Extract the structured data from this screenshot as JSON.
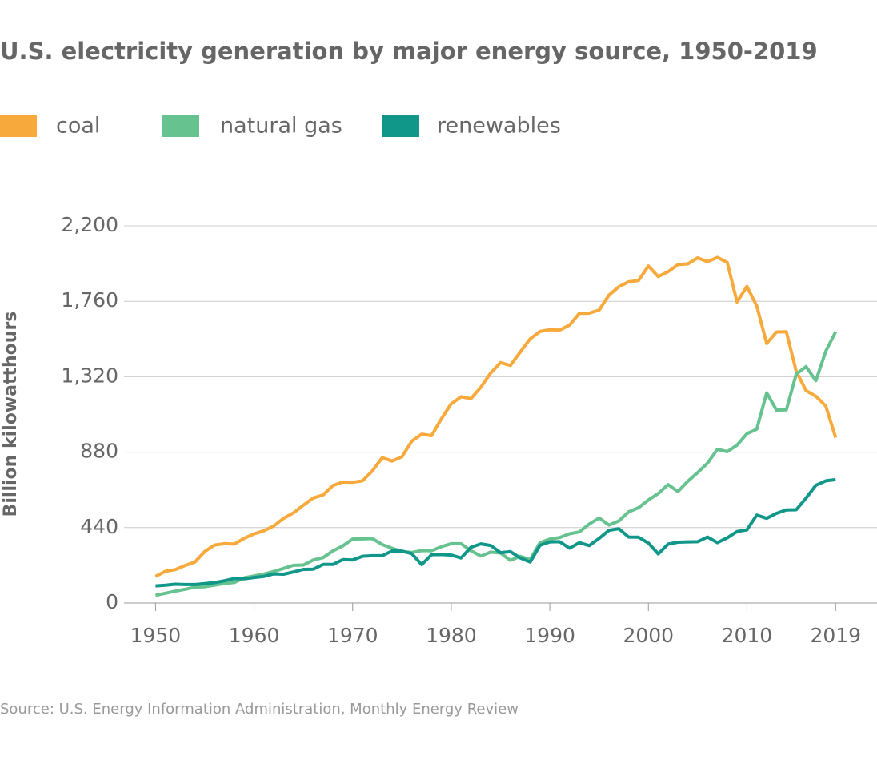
{
  "chart_data": {
    "type": "line",
    "title": "U.S. electricity generation by major energy source, 1950-2019",
    "ylabel": "Billion kilowatthours",
    "source": "Source: U.S. Energy Information Administration, Monthly Energy Review",
    "x": [
      1950,
      1951,
      1952,
      1953,
      1954,
      1955,
      1956,
      1957,
      1958,
      1959,
      1960,
      1961,
      1962,
      1963,
      1964,
      1965,
      1966,
      1967,
      1968,
      1969,
      1970,
      1971,
      1972,
      1973,
      1974,
      1975,
      1976,
      1977,
      1978,
      1979,
      1980,
      1981,
      1982,
      1983,
      1984,
      1985,
      1986,
      1987,
      1988,
      1989,
      1990,
      1991,
      1992,
      1993,
      1994,
      1995,
      1996,
      1997,
      1998,
      1999,
      2000,
      2001,
      2002,
      2003,
      2004,
      2005,
      2006,
      2007,
      2008,
      2009,
      2010,
      2011,
      2012,
      2013,
      2014,
      2015,
      2016,
      2017,
      2018,
      2019
    ],
    "series": [
      {
        "name": "coal",
        "color": "#f7a93b",
        "values": [
          155,
          185,
          195,
          219,
          239,
          301,
          338,
          346,
          344,
          378,
          403,
          422,
          450,
          494,
          526,
          571,
          613,
          630,
          685,
          706,
          704,
          713,
          771,
          848,
          828,
          853,
          944,
          985,
          976,
          1075,
          1162,
          1203,
          1192,
          1259,
          1342,
          1402,
          1386,
          1464,
          1541,
          1584,
          1594,
          1592,
          1621,
          1690,
          1691,
          1709,
          1796,
          1845,
          1874,
          1881,
          1966,
          1904,
          1933,
          1974,
          1978,
          2013,
          1991,
          2016,
          1986,
          1756,
          1847,
          1733,
          1514,
          1581,
          1582,
          1352,
          1239,
          1206,
          1149,
          965
        ]
      },
      {
        "name": "natural gas",
        "color": "#66c28f",
        "values": [
          45,
          57,
          69,
          80,
          93,
          95,
          104,
          114,
          120,
          147,
          158,
          169,
          184,
          202,
          220,
          222,
          251,
          265,
          304,
          333,
          373,
          374,
          376,
          341,
          320,
          300,
          295,
          306,
          305,
          329,
          346,
          346,
          305,
          274,
          297,
          292,
          249,
          273,
          253,
          352,
          373,
          382,
          404,
          415,
          461,
          496,
          455,
          479,
          532,
          556,
          601,
          639,
          691,
          650,
          710,
          761,
          816,
          897,
          883,
          921,
          988,
          1014,
          1226,
          1125,
          1127,
          1335,
          1379,
          1297,
          1469,
          1582
        ]
      },
      {
        "name": "renewables",
        "color": "#11968a",
        "values": [
          100,
          104,
          110,
          108,
          108,
          113,
          119,
          130,
          143,
          141,
          149,
          155,
          170,
          168,
          181,
          196,
          197,
          225,
          225,
          253,
          251,
          273,
          276,
          276,
          304,
          303,
          288,
          224,
          282,
          283,
          280,
          263,
          325,
          345,
          336,
          294,
          300,
          263,
          239,
          337,
          357,
          358,
          320,
          352,
          335,
          377,
          424,
          434,
          385,
          384,
          350,
          287,
          344,
          355,
          357,
          358,
          385,
          352,
          380,
          417,
          427,
          513,
          494,
          523,
          543,
          544,
          612,
          687,
          713,
          720
        ]
      }
    ],
    "xlim": [
      1946.8,
      2023.2
    ],
    "xticks": [
      1950,
      1960,
      1970,
      1980,
      1990,
      2000,
      2010,
      2019
    ],
    "ylim": [
      0,
      2200
    ],
    "yticks": [
      0,
      440,
      880,
      {
        "value": 1320,
        "label": "1,320"
      },
      {
        "value": 1760,
        "label": "1,760"
      },
      {
        "value": 2200,
        "label": "2,200"
      }
    ],
    "grid": true
  }
}
